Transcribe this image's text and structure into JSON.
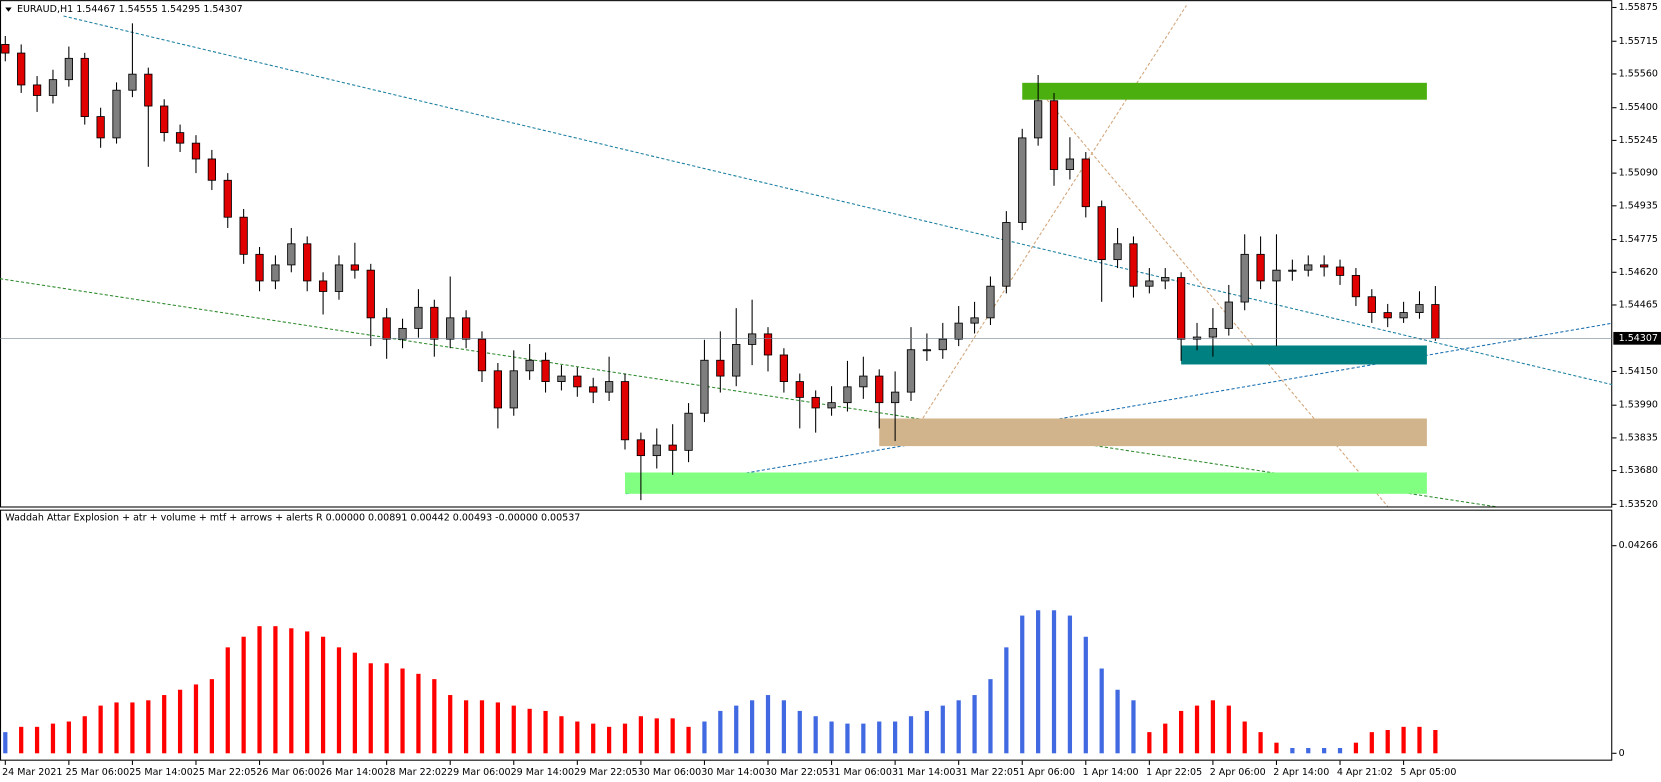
{
  "chart_data": {
    "type": "candlestick",
    "header": "EURAUD,H1  1.54467 1.54555 1.54295 1.54307",
    "indicator_header": "Waddah Attar Explosion + atr + volume + mtf + arrows + alerts R 0.00000 0.00891 0.00442 0.00493 -0.00000 0.00537",
    "up_color": "#7f7f7f",
    "down_color": "#e00000",
    "categories": [
      "24 Mar 2021",
      null,
      null,
      null,
      "25 Mar 06:00",
      null,
      null,
      null,
      "25 Mar 14:00",
      null,
      null,
      null,
      "25 Mar 22:05",
      null,
      null,
      null,
      "26 Mar 06:00",
      null,
      null,
      null,
      "26 Mar 14:00",
      null,
      null,
      null,
      "28 Mar 22:02",
      null,
      null,
      null,
      "29 Mar 06:00",
      null,
      null,
      null,
      "29 Mar 14:00",
      null,
      null,
      null,
      "29 Mar 22:05",
      null,
      null,
      null,
      "30 Mar 06:00",
      null,
      null,
      null,
      "30 Mar 14:00",
      null,
      null,
      null,
      "30 Mar 22:05",
      null,
      null,
      null,
      "31 Mar 06:00",
      null,
      null,
      null,
      "31 Mar 14:00",
      null,
      null,
      null,
      "31 Mar 22:05",
      null,
      null,
      null,
      "1 Apr 06:00",
      null,
      null,
      null,
      "1 Apr 14:00",
      null,
      null,
      null,
      "1 Apr 22:05",
      null,
      null,
      null,
      "2 Apr 06:00",
      null,
      null,
      null,
      "2 Apr 14:00",
      null,
      null,
      null,
      "4 Apr 21:02",
      null,
      null,
      null,
      "5 Apr 05:00",
      null,
      null
    ],
    "open": [
      1.557,
      1.55659,
      1.55508,
      1.55458,
      1.55533,
      1.55634,
      1.55358,
      1.55257,
      1.55483,
      1.55559,
      1.55408,
      1.55282,
      1.55232,
      1.55157,
      1.55056,
      1.54881,
      1.54705,
      1.54579,
      1.54655,
      1.54755,
      1.54579,
      1.54529,
      1.54655,
      1.5463,
      1.54404,
      1.54303,
      1.54354,
      1.54454,
      1.54303,
      1.54404,
      1.54303,
      1.54153,
      1.53977,
      1.54153,
      1.54203,
      1.54102,
      1.54128,
      1.54077,
      1.54052,
      1.54102,
      1.53826,
      1.53751,
      1.53801,
      1.53776,
      1.53952,
      1.54203,
      1.54128,
      1.54278,
      1.54328,
      1.54228,
      1.54102,
      1.54027,
      1.53977,
      1.54002,
      1.54077,
      1.54128,
      1.54002,
      1.54052,
      1.54253,
      1.54253,
      1.54303,
      1.54379,
      1.54404,
      1.54554,
      1.54856,
      1.55257,
      1.55433,
      1.55107,
      1.55157,
      1.54931,
      1.5468,
      1.54755,
      1.54554,
      1.54579,
      1.54595,
      1.54303,
      1.54313,
      1.54354,
      1.54479,
      1.54705,
      1.54579,
      1.5463,
      1.5463,
      1.54655,
      1.54645,
      1.54605,
      1.54504,
      1.54429,
      1.54404,
      1.54429,
      1.54467
    ],
    "high": [
      1.5574,
      1.557,
      1.5555,
      1.5558,
      1.5569,
      1.5566,
      1.554,
      1.5552,
      1.558,
      1.5559,
      1.5544,
      1.5532,
      1.5527,
      1.552,
      1.5509,
      1.5492,
      1.5474,
      1.547,
      1.5483,
      1.5479,
      1.5462,
      1.547,
      1.5476,
      1.5466,
      1.5445,
      1.544,
      1.5454,
      1.5449,
      1.546,
      1.5444,
      1.5434,
      1.5419,
      1.5425,
      1.5428,
      1.5424,
      1.5418,
      1.5417,
      1.5412,
      1.5422,
      1.5414,
      1.5386,
      1.5388,
      1.539,
      1.54,
      1.543,
      1.5434,
      1.5445,
      1.5449,
      1.5436,
      1.5426,
      1.5414,
      1.5406,
      1.5408,
      1.542,
      1.5422,
      1.5416,
      1.5415,
      1.5436,
      1.5433,
      1.5438,
      1.5446,
      1.5448,
      1.546,
      1.5491,
      1.553,
      1.55555,
      1.5547,
      1.5526,
      1.5519,
      1.5496,
      1.5483,
      1.5479,
      1.5464,
      1.5464,
      1.5462,
      1.5438,
      1.5445,
      1.5456,
      1.548,
      1.5479,
      1.548,
      1.5468,
      1.547,
      1.547,
      1.5468,
      1.5464,
      1.5454,
      1.5447,
      1.5448,
      1.5453,
      1.54555
    ],
    "low": [
      1.5562,
      1.5547,
      1.5538,
      1.5542,
      1.555,
      1.5532,
      1.5521,
      1.5523,
      1.5545,
      1.5512,
      1.5524,
      1.5519,
      1.5509,
      1.5501,
      1.5483,
      1.5466,
      1.5453,
      1.5454,
      1.5462,
      1.5453,
      1.5442,
      1.5449,
      1.5459,
      1.5427,
      1.5421,
      1.5426,
      1.5431,
      1.5422,
      1.5426,
      1.5426,
      1.541,
      1.5388,
      1.5394,
      1.5411,
      1.5405,
      1.5406,
      1.5403,
      1.54,
      1.5401,
      1.5378,
      1.5354,
      1.5369,
      1.5366,
      1.5372,
      1.5391,
      1.5405,
      1.5408,
      1.5418,
      1.5415,
      1.5405,
      1.5388,
      1.5386,
      1.5394,
      1.5396,
      1.5402,
      1.5388,
      1.5382,
      1.5401,
      1.542,
      1.5421,
      1.5427,
      1.5433,
      1.5437,
      1.5452,
      1.5482,
      1.5522,
      1.5503,
      1.5506,
      1.5488,
      1.5448,
      1.5464,
      1.545,
      1.5452,
      1.5454,
      1.542,
      1.5425,
      1.5422,
      1.5432,
      1.5444,
      1.5454,
      1.5427,
      1.5458,
      1.546,
      1.546,
      1.5456,
      1.5446,
      1.5438,
      1.5436,
      1.5438,
      1.544,
      1.54295
    ],
    "close": [
      1.55659,
      1.55508,
      1.55458,
      1.55533,
      1.55634,
      1.55358,
      1.55257,
      1.55483,
      1.55559,
      1.55408,
      1.55282,
      1.55232,
      1.55157,
      1.55056,
      1.54881,
      1.54705,
      1.54579,
      1.54655,
      1.54755,
      1.54579,
      1.54529,
      1.54655,
      1.5463,
      1.54404,
      1.54303,
      1.54354,
      1.54454,
      1.54303,
      1.54404,
      1.54303,
      1.54153,
      1.53977,
      1.54153,
      1.54203,
      1.54102,
      1.54128,
      1.54077,
      1.54052,
      1.54102,
      1.53826,
      1.53751,
      1.53801,
      1.53776,
      1.53952,
      1.54203,
      1.54128,
      1.54278,
      1.54328,
      1.54228,
      1.54102,
      1.54027,
      1.53977,
      1.54002,
      1.54077,
      1.54128,
      1.54002,
      1.54052,
      1.54253,
      1.54253,
      1.54303,
      1.54379,
      1.54404,
      1.54554,
      1.54856,
      1.55257,
      1.55433,
      1.55107,
      1.55157,
      1.54931,
      1.5468,
      1.54755,
      1.54554,
      1.54579,
      1.54595,
      1.54303,
      1.54313,
      1.54354,
      1.54479,
      1.54705,
      1.54579,
      1.5463,
      1.5463,
      1.54655,
      1.54645,
      1.54605,
      1.54504,
      1.54429,
      1.54404,
      1.54429,
      1.54467,
      1.54307
    ],
    "ylim": [
      1.5351,
      1.5591
    ],
    "yticks": [
      1.55875,
      1.55715,
      {
        "value": 1.5556,
        "label": "1.55560"
      },
      {
        "value": 1.554,
        "label": "1.55400"
      },
      1.55245,
      {
        "value": 1.5509,
        "label": "1.55090"
      },
      1.54935,
      1.54775,
      {
        "value": 1.5462,
        "label": "1.54620"
      },
      1.54465,
      {
        "value": 1.5415,
        "label": "1.54150"
      },
      {
        "value": 1.5399,
        "label": "1.53990"
      },
      1.53835,
      {
        "value": 1.5368,
        "label": "1.53680"
      },
      {
        "value": 1.5352,
        "label": "1.53520"
      }
    ],
    "current_price": 1.54307,
    "zones": [
      {
        "start": 64,
        "top": 1.55518,
        "bottom": 1.55438,
        "color": "#4caf10"
      },
      {
        "start": 74,
        "top": 1.54273,
        "bottom": 1.54183,
        "color": "#008080"
      },
      {
        "start": 55,
        "top": 1.53927,
        "bottom": 1.53796,
        "color": "#d2b48c"
      },
      {
        "start": 39,
        "top": 1.53671,
        "bottom": 1.5357,
        "color": "#80ff80"
      }
    ],
    "indicator": {
      "values": [
        0.00435,
        0.00544,
        0.00544,
        0.0061,
        0.00653,
        0.00762,
        0.0098,
        0.01045,
        0.01045,
        0.01089,
        0.01197,
        0.01306,
        0.01415,
        0.01524,
        0.02177,
        0.02395,
        0.02612,
        0.02612,
        0.02569,
        0.02504,
        0.02395,
        0.02177,
        0.02068,
        0.0185,
        0.0185,
        0.01742,
        0.01633,
        0.01524,
        0.01197,
        0.01089,
        0.01089,
        0.01045,
        0.0098,
        0.00914,
        0.00871,
        0.00762,
        0.00653,
        0.0061,
        0.00544,
        0.0061,
        0.00762,
        0.00718,
        0.00718,
        0.00544,
        0.00653,
        0.00871,
        0.0098,
        0.01089,
        0.01197,
        0.01089,
        0.00871,
        0.00762,
        0.00653,
        0.0061,
        0.0061,
        0.00653,
        0.00653,
        0.00762,
        0.00871,
        0.0098,
        0.01089,
        0.01197,
        0.01524,
        0.02177,
        0.0283,
        0.02939,
        0.02939,
        0.0283,
        0.02395,
        0.01742,
        0.01306,
        0.01089,
        0.00435,
        0.0061,
        0.00871,
        0.0098,
        0.01089,
        0.0098,
        0.00653,
        0.00435,
        0.00218,
        0.00109,
        0.00109,
        0.00109,
        0.00109,
        0.00218,
        0.00435,
        0.00479,
        0.00544,
        0.00544,
        0.00479
      ],
      "colors": [
        "#4169e1",
        "#ff0000",
        "#ff0000",
        "#ff0000",
        "#ff0000",
        "#ff0000",
        "#ff0000",
        "#ff0000",
        "#ff0000",
        "#ff0000",
        "#ff0000",
        "#ff0000",
        "#ff0000",
        "#ff0000",
        "#ff0000",
        "#ff0000",
        "#ff0000",
        "#ff0000",
        "#ff0000",
        "#ff0000",
        "#ff0000",
        "#ff0000",
        "#ff0000",
        "#ff0000",
        "#ff0000",
        "#ff0000",
        "#ff0000",
        "#ff0000",
        "#ff0000",
        "#ff0000",
        "#ff0000",
        "#ff0000",
        "#ff0000",
        "#ff0000",
        "#ff0000",
        "#ff0000",
        "#ff0000",
        "#ff0000",
        "#ff0000",
        "#ff0000",
        "#ff0000",
        "#ff0000",
        "#ff0000",
        "#ff0000",
        "#4169e1",
        "#4169e1",
        "#4169e1",
        "#4169e1",
        "#4169e1",
        "#4169e1",
        "#4169e1",
        "#4169e1",
        "#4169e1",
        "#4169e1",
        "#4169e1",
        "#4169e1",
        "#4169e1",
        "#4169e1",
        "#4169e1",
        "#4169e1",
        "#4169e1",
        "#4169e1",
        "#4169e1",
        "#4169e1",
        "#4169e1",
        "#4169e1",
        "#4169e1",
        "#4169e1",
        "#4169e1",
        "#4169e1",
        "#4169e1",
        "#4169e1",
        "#ff0000",
        "#ff0000",
        "#ff0000",
        "#ff0000",
        "#ff0000",
        "#ff0000",
        "#ff0000",
        "#ff0000",
        "#ff0000",
        "#4169e1",
        "#4169e1",
        "#4169e1",
        "#4169e1",
        "#ff0000",
        "#ff0000",
        "#ff0000",
        "#ff0000",
        "#ff0000",
        "#ff0000"
      ],
      "ylim": [
        -0.00152,
        0.04985
      ],
      "yticks": [
        0.04266,
        0
      ]
    }
  }
}
